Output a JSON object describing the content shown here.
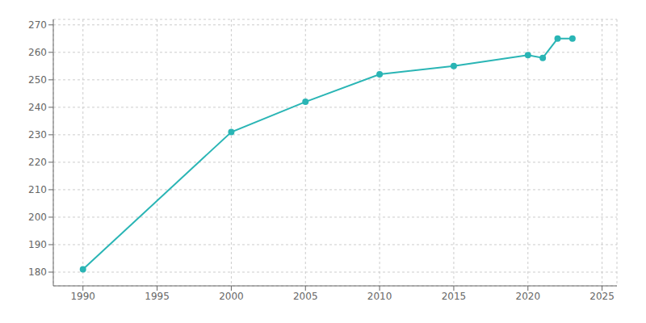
{
  "chart_data": {
    "type": "line",
    "x": [
      1990,
      2000,
      2005,
      2010,
      2015,
      2020,
      2021,
      2022,
      2023
    ],
    "values": [
      181,
      231,
      242,
      252,
      255,
      259,
      258,
      265,
      265
    ],
    "color": "#2ab5b5",
    "marker": "circle",
    "xlim": [
      1988,
      2026
    ],
    "xticks": [
      1990,
      1995,
      2000,
      2005,
      2010,
      2015,
      2020,
      2025
    ],
    "ylim": [
      175,
      272
    ],
    "yticks": [
      180,
      190,
      200,
      210,
      220,
      230,
      240,
      250,
      260,
      270
    ],
    "grid": true
  }
}
